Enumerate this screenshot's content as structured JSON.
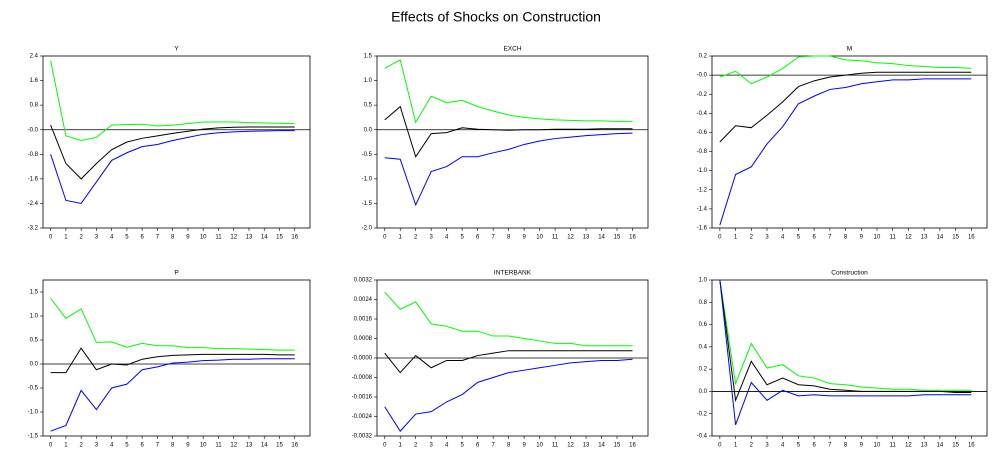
{
  "title": "Effects of Shocks on Construction",
  "chart_data": [
    {
      "type": "line",
      "title": "Y",
      "x": [
        0,
        1,
        2,
        3,
        4,
        5,
        6,
        7,
        8,
        9,
        10,
        11,
        12,
        13,
        14,
        15,
        16
      ],
      "xlim": [
        -0.5,
        17
      ],
      "xticks": [
        0,
        1,
        2,
        3,
        4,
        5,
        6,
        7,
        8,
        9,
        10,
        11,
        12,
        13,
        14,
        15,
        16
      ],
      "ylim": [
        -3.2,
        2.4
      ],
      "yticks": [
        2.4,
        1.6,
        0.8,
        {
          "value": 0,
          "label": "-0.0"
        },
        -0.8,
        -1.6,
        -2.4,
        -3.2
      ],
      "series": [
        {
          "color": "#00ff00",
          "values": [
            2.25,
            -0.2,
            -0.35,
            -0.25,
            0.15,
            0.17,
            0.18,
            0.12,
            0.15,
            0.2,
            0.25,
            0.25,
            0.25,
            0.23,
            0.22,
            0.21,
            0.2
          ]
        },
        {
          "color": "#000000",
          "values": [
            0.15,
            -1.1,
            -1.6,
            -1.1,
            -0.65,
            -0.4,
            -0.28,
            -0.2,
            -0.12,
            -0.05,
            0.02,
            0.06,
            0.08,
            0.09,
            0.09,
            0.09,
            0.09
          ]
        },
        {
          "color": "#0000ff",
          "values": [
            -0.8,
            -2.3,
            -2.4,
            -1.7,
            -1.0,
            -0.75,
            -0.55,
            -0.48,
            -0.35,
            -0.25,
            -0.15,
            -0.1,
            -0.07,
            -0.05,
            -0.04,
            -0.03,
            -0.03
          ]
        }
      ]
    },
    {
      "type": "line",
      "title": "EXCH",
      "x": [
        0,
        1,
        2,
        3,
        4,
        5,
        6,
        7,
        8,
        9,
        10,
        11,
        12,
        13,
        14,
        15,
        16
      ],
      "xlim": [
        -0.5,
        17
      ],
      "xticks": [
        0,
        1,
        2,
        3,
        4,
        5,
        6,
        7,
        8,
        9,
        10,
        11,
        12,
        13,
        14,
        15,
        16
      ],
      "ylim": [
        -2,
        1.5
      ],
      "yticks": [
        1.5,
        {
          "value": 1,
          "label": "1.0"
        },
        0.5,
        {
          "value": 0,
          "label": "0.0"
        },
        -0.5,
        {
          "value": -1,
          "label": "-1.0"
        },
        -1.5,
        {
          "value": -2,
          "label": "-2.0"
        }
      ],
      "series": [
        {
          "color": "#00ff00",
          "values": [
            1.25,
            1.42,
            0.15,
            0.68,
            0.55,
            0.6,
            0.47,
            0.38,
            0.3,
            0.25,
            0.22,
            0.2,
            0.19,
            0.18,
            0.18,
            0.17,
            0.17
          ]
        },
        {
          "color": "#000000",
          "values": [
            0.2,
            0.47,
            -0.55,
            -0.08,
            -0.06,
            0.04,
            0.01,
            0.0,
            -0.01,
            0.0,
            0.0,
            0.01,
            0.01,
            0.01,
            0.02,
            0.02,
            0.02
          ]
        },
        {
          "color": "#0000ff",
          "values": [
            -0.57,
            -0.6,
            -1.53,
            -0.85,
            -0.75,
            -0.55,
            -0.55,
            -0.47,
            -0.4,
            -0.3,
            -0.23,
            -0.18,
            -0.15,
            -0.12,
            -0.1,
            -0.08,
            -0.07
          ]
        }
      ]
    },
    {
      "type": "line",
      "title": "M",
      "x": [
        0,
        1,
        2,
        3,
        4,
        5,
        6,
        7,
        8,
        9,
        10,
        11,
        12,
        13,
        14,
        15,
        16
      ],
      "xlim": [
        -0.5,
        17
      ],
      "xticks": [
        0,
        1,
        2,
        3,
        4,
        5,
        6,
        7,
        8,
        9,
        10,
        11,
        12,
        13,
        14,
        15,
        16
      ],
      "ylim": [
        -1.6,
        0.2
      ],
      "yticks": [
        0.2,
        {
          "value": 0,
          "label": "-0.0"
        },
        -0.2,
        -0.4,
        -0.6,
        -0.8,
        {
          "value": -1,
          "label": "-1.0"
        },
        -1.2,
        -1.4,
        -1.6
      ],
      "series": [
        {
          "color": "#00ff00",
          "values": [
            -0.02,
            0.04,
            -0.09,
            -0.02,
            0.07,
            0.19,
            0.2,
            0.2,
            0.16,
            0.15,
            0.13,
            0.12,
            0.1,
            0.09,
            0.08,
            0.08,
            0.07
          ]
        },
        {
          "color": "#000000",
          "values": [
            -0.7,
            -0.53,
            -0.55,
            -0.42,
            -0.28,
            -0.12,
            -0.06,
            -0.02,
            0.0,
            0.02,
            0.03,
            0.03,
            0.03,
            0.03,
            0.03,
            0.03,
            0.03
          ]
        },
        {
          "color": "#0000ff",
          "values": [
            -1.57,
            -1.04,
            -0.96,
            -0.72,
            -0.54,
            -0.3,
            -0.22,
            -0.15,
            -0.13,
            -0.09,
            -0.07,
            -0.05,
            -0.05,
            -0.04,
            -0.04,
            -0.04,
            -0.04
          ]
        }
      ]
    },
    {
      "type": "line",
      "title": "P",
      "x": [
        0,
        1,
        2,
        3,
        4,
        5,
        6,
        7,
        8,
        9,
        10,
        11,
        12,
        13,
        14,
        15,
        16
      ],
      "xlim": [
        -0.5,
        17
      ],
      "xticks": [
        0,
        1,
        2,
        3,
        4,
        5,
        6,
        7,
        8,
        9,
        10,
        11,
        12,
        13,
        14,
        15,
        16
      ],
      "ylim": [
        -1.5,
        1.75
      ],
      "yticks": [
        1.5,
        {
          "value": 1,
          "label": "1.0"
        },
        0.5,
        {
          "value": 0,
          "label": "0.0"
        },
        -0.5,
        {
          "value": -1,
          "label": "-1.0"
        },
        -1.5
      ],
      "series": [
        {
          "color": "#00ff00",
          "values": [
            1.37,
            0.95,
            1.15,
            0.45,
            0.46,
            0.35,
            0.43,
            0.38,
            0.38,
            0.34,
            0.34,
            0.32,
            0.32,
            0.31,
            0.3,
            0.29,
            0.29
          ]
        },
        {
          "color": "#000000",
          "values": [
            -0.18,
            -0.18,
            0.33,
            -0.12,
            0.0,
            -0.02,
            0.1,
            0.15,
            0.18,
            0.19,
            0.2,
            0.2,
            0.2,
            0.2,
            0.2,
            0.19,
            0.19
          ]
        },
        {
          "color": "#0000ff",
          "values": [
            -1.4,
            -1.28,
            -0.55,
            -0.95,
            -0.5,
            -0.42,
            -0.12,
            -0.06,
            0.02,
            0.04,
            0.07,
            0.08,
            0.1,
            0.1,
            0.11,
            0.11,
            0.11
          ]
        }
      ]
    },
    {
      "type": "line",
      "title": "INTERBANK",
      "x": [
        0,
        1,
        2,
        3,
        4,
        5,
        6,
        7,
        8,
        9,
        10,
        11,
        12,
        13,
        14,
        15,
        16
      ],
      "xlim": [
        -0.5,
        17
      ],
      "xticks": [
        0,
        1,
        2,
        3,
        4,
        5,
        6,
        7,
        8,
        9,
        10,
        11,
        12,
        13,
        14,
        15,
        16
      ],
      "ylim": [
        -0.0032,
        0.0032
      ],
      "yticks": [
        0.0032,
        0.0024,
        0.0016,
        0.0008,
        {
          "value": 0,
          "label": "-0.0000"
        },
        -0.0008,
        -0.0016,
        -0.0024,
        -0.0032
      ],
      "series": [
        {
          "color": "#00ff00",
          "values": [
            0.0027,
            0.002,
            0.0023,
            0.0014,
            0.0013,
            0.0011,
            0.0011,
            0.0009,
            0.0009,
            0.0008,
            0.0007,
            0.0006,
            0.0006,
            0.0005,
            0.0005,
            0.0005,
            0.0005
          ]
        },
        {
          "color": "#000000",
          "values": [
            0.0002,
            -0.0006,
            0.0001,
            -0.0004,
            -0.0001,
            -0.0001,
            0.0001,
            0.0002,
            0.0003,
            0.0003,
            0.0003,
            0.0003,
            0.0003,
            0.0003,
            0.0003,
            0.0003,
            0.0003
          ]
        },
        {
          "color": "#0000ff",
          "values": [
            -0.002,
            -0.003,
            -0.0023,
            -0.0022,
            -0.0018,
            -0.0015,
            -0.001,
            -0.0008,
            -0.0006,
            -0.0005,
            -0.0004,
            -0.0003,
            -0.0002,
            -0.00015,
            -0.0001,
            -0.0001,
            -5e-05
          ]
        }
      ]
    },
    {
      "type": "line",
      "title": "Construction",
      "x": [
        0,
        1,
        2,
        3,
        4,
        5,
        6,
        7,
        8,
        9,
        10,
        11,
        12,
        13,
        14,
        15,
        16
      ],
      "xlim": [
        -0.5,
        17
      ],
      "xticks": [
        0,
        1,
        2,
        3,
        4,
        5,
        6,
        7,
        8,
        9,
        10,
        11,
        12,
        13,
        14,
        15,
        16
      ],
      "ylim": [
        -0.4,
        1
      ],
      "yticks": [
        {
          "value": 1,
          "label": "1.0"
        },
        0.8,
        0.6,
        0.4,
        0.2,
        {
          "value": 0,
          "label": "0.0"
        },
        -0.2,
        -0.4
      ],
      "series": [
        {
          "color": "#00ff00",
          "values": [
            1.0,
            0.07,
            0.43,
            0.21,
            0.24,
            0.14,
            0.12,
            0.07,
            0.06,
            0.04,
            0.03,
            0.02,
            0.02,
            0.01,
            0.01,
            0.01,
            0.01
          ]
        },
        {
          "color": "#000000",
          "values": [
            1.0,
            -0.08,
            0.27,
            0.06,
            0.12,
            0.06,
            0.05,
            0.02,
            0.01,
            0.0,
            0.0,
            0.0,
            0.0,
            0.0,
            0.0,
            -0.01,
            -0.01
          ]
        },
        {
          "color": "#0000ff",
          "values": [
            1.0,
            -0.3,
            0.08,
            -0.08,
            0.01,
            -0.04,
            -0.03,
            -0.04,
            -0.04,
            -0.04,
            -0.04,
            -0.04,
            -0.04,
            -0.03,
            -0.03,
            -0.03,
            -0.03
          ]
        }
      ]
    }
  ]
}
